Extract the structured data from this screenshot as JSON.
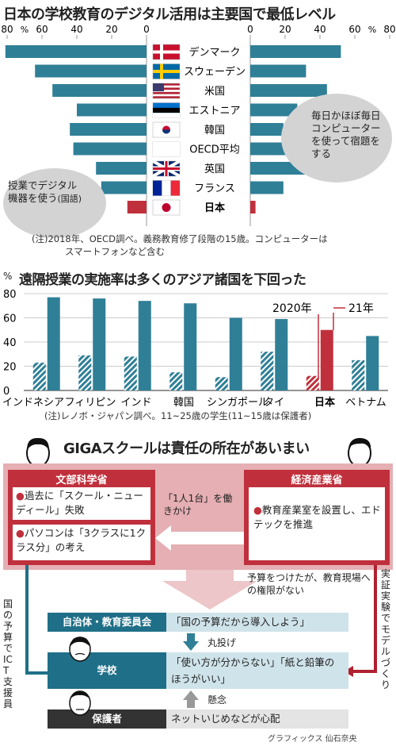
{
  "chart1": {
    "title": "日本の学校教育のデジタル活用は主要国で最低レベル",
    "left_ticks": [
      "80",
      "%",
      "60",
      "40",
      "20",
      "0"
    ],
    "right_ticks": [
      "0",
      "20",
      "40",
      "60",
      "%",
      "80"
    ],
    "left_caption": [
      "授業でデジタル",
      "機器を使う"
    ],
    "left_caption_suffix": "(国語)",
    "right_caption": [
      "毎日かほぼ毎日",
      "コンピューター",
      "を使って宿題を",
      "する"
    ],
    "note": [
      "(注)2018年、OECD調べ。義務教育修了段階の15歳。コンピューターは",
      "スマートフォンなど含む"
    ]
  },
  "chart2": {
    "title": "遠隔授業の実施率は多くのアジア諸国を下回った",
    "y_unit": "%",
    "label_2020": "2020年",
    "label_2021": "21年",
    "note": "(注)レノボ・ジャパン調べ。11~25歳の学生(11~15歳は保護者)"
  },
  "chart_data": [
    {
      "type": "bar",
      "title": "日本の学校教育のデジタル活用は主要国で最低レベル",
      "categories": [
        "デンマーク",
        "スウェーデン",
        "米国",
        "エストニア",
        "韓国",
        "OECD平均",
        "英国",
        "フランス",
        "日本"
      ],
      "series": [
        {
          "name": "授業でデジタル機器を使う(国語)",
          "values": [
            81,
            64,
            54,
            40,
            44,
            42,
            29,
            26,
            11
          ]
        },
        {
          "name": "毎日かほぼ毎日コンピューターを使って宿題をする",
          "values": [
            52,
            32,
            44,
            27,
            19,
            22,
            36,
            19,
            3
          ]
        }
      ],
      "xlim": [
        0,
        80
      ]
    },
    {
      "type": "bar",
      "title": "遠隔授業の実施率は多くのアジア諸国を下回った",
      "categories": [
        "インドネシア",
        "フィリピン",
        "インド",
        "韓国",
        "シンガポール",
        "タイ",
        "日本",
        "ベトナム"
      ],
      "series": [
        {
          "name": "2020年",
          "values": [
            23,
            29,
            28,
            15,
            11,
            32,
            12,
            25
          ]
        },
        {
          "name": "21年",
          "values": [
            77,
            76,
            74,
            72,
            60,
            59,
            50,
            45
          ]
        }
      ],
      "ylabel": "%",
      "ylim": [
        0,
        80
      ],
      "yticks": [
        0,
        20,
        40,
        60,
        80
      ]
    }
  ],
  "colors": {
    "teal": "#2f7f97",
    "red": "#c0303c",
    "pink": "#ecc6c8",
    "dark_teal": "#1f6f88"
  },
  "diagram": {
    "title": "GIGAスクールは責任の所在があいまい",
    "mext": {
      "label": "文部科学省",
      "items": [
        "過去に「スクール・ニューディール」失敗",
        "パソコンは「3クラスに1クラス分」の考え"
      ]
    },
    "meti": {
      "label": "経済産業省",
      "item": "教育産業室を設置し、エドテックを推進"
    },
    "arrow_label": "「1人1台」を働きかけ",
    "budget_note": "予算をつけたが、教育現場への権限がない",
    "left_vertical": "国の予算でICT支援員",
    "right_vertical": "実証実験でモデルづくり",
    "rows": [
      {
        "label": "自治体・教育委員会",
        "text": "「国の予算だから導入しよう」"
      },
      {
        "label": "学校",
        "text": "「使い方が分からない」「紙と鉛筆のほうがいい」"
      },
      {
        "label": "保護者",
        "text": "ネットいじめなどが心配"
      }
    ],
    "maru": "丸投げ",
    "kenen": "懸念",
    "credit": "グラフィックス 仙石奈央"
  }
}
